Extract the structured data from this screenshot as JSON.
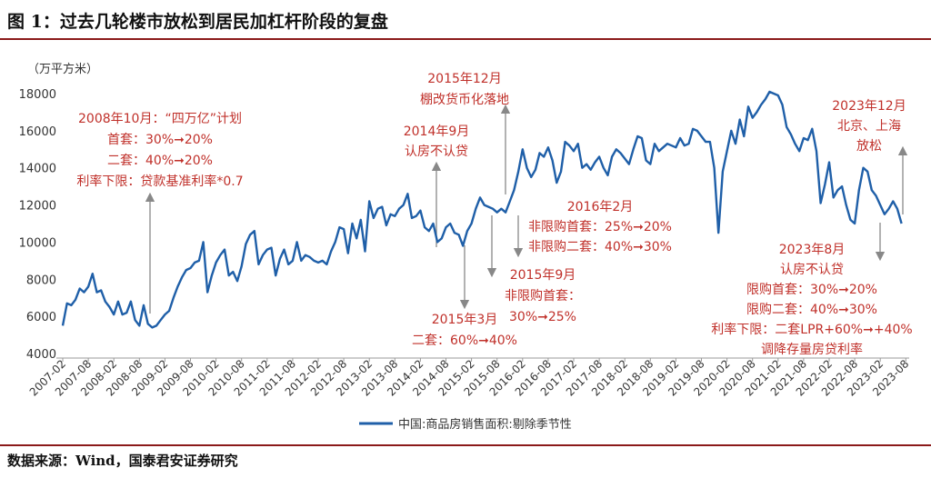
{
  "title": "图 1：过去几轮楼市放松到居民加杠杆阶段的复盘",
  "source": "数据来源：Wind，国泰君安证券研究",
  "colors": {
    "line": "#1F5FA8",
    "annotation": "#C0302A",
    "arrow": "#888888",
    "rule": "#8B1A1A"
  },
  "chart_data": {
    "type": "line",
    "unit_label": "（万平方米）",
    "ylim": [
      4000,
      18000
    ],
    "yticks": [
      4000,
      6000,
      8000,
      10000,
      12000,
      14000,
      16000,
      18000
    ],
    "xticks": [
      "2007-02",
      "2007-08",
      "2008-02",
      "2008-08",
      "2009-02",
      "2009-08",
      "2010-02",
      "2010-08",
      "2011-02",
      "2011-08",
      "2012-02",
      "2012-08",
      "2013-02",
      "2013-08",
      "2014-02",
      "2014-08",
      "2015-02",
      "2015-08",
      "2016-02",
      "2016-08",
      "2017-02",
      "2017-08",
      "2018-02",
      "2018-08",
      "2019-02",
      "2019-08",
      "2020-02",
      "2020-08",
      "2021-02",
      "2021-08",
      "2022-02",
      "2022-08",
      "2023-02",
      "2023-08"
    ],
    "series": [
      {
        "name": "中国:商品房销售面积:剔除季节性",
        "start": "2007-02",
        "values": [
          5500,
          6700,
          6600,
          6900,
          7500,
          7300,
          7600,
          8300,
          7300,
          7400,
          6800,
          6500,
          6100,
          6800,
          6100,
          6200,
          6800,
          5800,
          5500,
          6600,
          5600,
          5400,
          5500,
          5800,
          6100,
          6300,
          7000,
          7600,
          8100,
          8500,
          8600,
          8900,
          9000,
          10000,
          7300,
          8200,
          8900,
          9300,
          9600,
          8200,
          8400,
          7900,
          8700,
          9900,
          10400,
          10600,
          8800,
          9300,
          9600,
          9700,
          8200,
          9100,
          9600,
          8800,
          9000,
          10000,
          9000,
          9300,
          9200,
          9000,
          8900,
          9000,
          8800,
          9500,
          10000,
          10800,
          10700,
          9400,
          11000,
          10200,
          11200,
          9500,
          12200,
          11300,
          11800,
          11900,
          10900,
          11500,
          11400,
          11800,
          12000,
          12600,
          11300,
          11400,
          11700,
          10800,
          10600,
          11000,
          10000,
          10200,
          10800,
          11000,
          10500,
          10400,
          9800,
          10600,
          11000,
          11800,
          12400,
          12000,
          11900,
          11800,
          11600,
          11800,
          11600,
          12200,
          12800,
          13800,
          15000,
          14000,
          13500,
          13900,
          14800,
          14600,
          15100,
          14400,
          13200,
          13800,
          15400,
          15200,
          14900,
          15300,
          14000,
          14200,
          13900,
          14300,
          14600,
          14000,
          13600,
          14600,
          15000,
          14800,
          14500,
          14200,
          15000,
          15700,
          15600,
          14400,
          14200,
          15300,
          14900,
          15100,
          15300,
          15200,
          15100,
          15600,
          15200,
          15300,
          16100,
          16000,
          15700,
          15400,
          15400,
          14000,
          10500,
          13800,
          14900,
          16000,
          15300,
          16600,
          15700,
          17300,
          16700,
          17000,
          17400,
          17700,
          18100,
          18000,
          17900,
          17400,
          16200,
          15800,
          15300,
          14900,
          15600,
          15500,
          16100,
          14900,
          12100,
          13100,
          14300,
          12400,
          12800,
          13000,
          12000,
          11200,
          11000,
          12800,
          14000,
          13800,
          12800,
          12500,
          12000,
          11500,
          11800,
          12200,
          11800,
          11000
        ]
      }
    ],
    "annotations": [
      {
        "lines": [
          "2008年10月：“四万亿”计划",
          "首套：30%➞20%",
          "二套：40%➞20%",
          "利率下限：贷款基准利率*0.7"
        ]
      },
      {
        "lines": [
          "2014年9月",
          "认房不认贷"
        ]
      },
      {
        "lines": [
          "2015年12月",
          "棚改货币化落地"
        ]
      },
      {
        "lines": [
          "2015年3月",
          "二套：60%➞40%"
        ]
      },
      {
        "lines": [
          "2015年9月",
          "非限购首套：",
          "30%➞25%"
        ]
      },
      {
        "lines": [
          "2016年2月",
          "非限购首套：25%➞20%",
          "非限购二套：40%➞30%"
        ]
      },
      {
        "lines": [
          "2023年12月",
          "北京、上海",
          "放松"
        ]
      },
      {
        "lines": [
          "2023年8月",
          "认房不认贷",
          "限购首套：30%➞20%",
          "限购二套：40%➞30%",
          "利率下限：二套LPR+60%➞+40%",
          "调降存量房贷利率"
        ]
      }
    ]
  }
}
